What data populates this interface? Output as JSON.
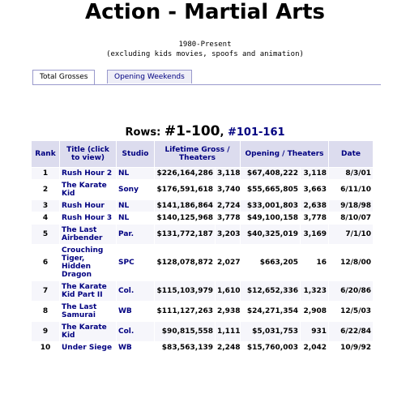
{
  "header": {
    "title": "Action - Martial Arts",
    "subtitle": "1980-Present",
    "note": "(excluding kids movies, spoofs and animation)"
  },
  "tabs": [
    "Total Grosses",
    "Opening Weekends"
  ],
  "rows_nav": {
    "label": "Rows:",
    "current": "#1-100",
    "separator": ",",
    "link": "#101-161"
  },
  "table": {
    "headers": [
      "Rank",
      "Title (click to view)",
      "Studio",
      "Lifetime Gross / Theaters",
      "Opening / Theaters",
      "Date"
    ],
    "rows": [
      [
        "1",
        "Rush Hour 2",
        "NL",
        "$226,164,286",
        "3,118",
        "$67,408,222",
        "3,118",
        "8/3/01"
      ],
      [
        "2",
        "The Karate Kid",
        "Sony",
        "$176,591,618",
        "3,740",
        "$55,665,805",
        "3,663",
        "6/11/10"
      ],
      [
        "3",
        "Rush Hour",
        "NL",
        "$141,186,864",
        "2,724",
        "$33,001,803",
        "2,638",
        "9/18/98"
      ],
      [
        "4",
        "Rush Hour 3",
        "NL",
        "$140,125,968",
        "3,778",
        "$49,100,158",
        "3,778",
        "8/10/07"
      ],
      [
        "5",
        "The Last Airbender",
        "Par.",
        "$131,772,187",
        "3,203",
        "$40,325,019",
        "3,169",
        "7/1/10"
      ],
      [
        "6",
        "Crouching Tiger, Hidden Dragon",
        "SPC",
        "$128,078,872",
        "2,027",
        "$663,205",
        "16",
        "12/8/00"
      ],
      [
        "7",
        "The Karate Kid Part II",
        "Col.",
        "$115,103,979",
        "1,610",
        "$12,652,336",
        "1,323",
        "6/20/86"
      ],
      [
        "8",
        "The Last Samurai",
        "WB",
        "$111,127,263",
        "2,938",
        "$24,271,354",
        "2,908",
        "12/5/03"
      ],
      [
        "9",
        "The Karate Kid",
        "Col.",
        "$90,815,558",
        "1,111",
        "$5,031,753",
        "931",
        "6/22/84"
      ],
      [
        "10",
        "Under Siege",
        "WB",
        "$83,563,139",
        "2,248",
        "$15,760,003",
        "2,042",
        "10/9/92"
      ]
    ]
  }
}
